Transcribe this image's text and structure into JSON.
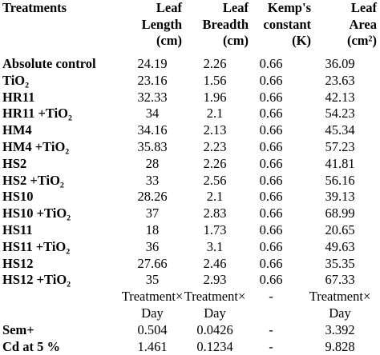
{
  "table": {
    "header": [
      [
        "Treatments"
      ],
      [
        "Leaf",
        "Length",
        "(cm)"
      ],
      [
        "Leaf",
        "Breadth",
        "(cm)"
      ],
      [
        "Kemp's",
        "constant",
        "(K)"
      ],
      [
        "Leaf",
        "Area",
        "(cm²)"
      ]
    ],
    "rows": [
      [
        "Absolute control",
        24.19,
        2.26,
        0.66,
        36.09
      ],
      [
        "TiO₂",
        23.16,
        1.56,
        0.66,
        23.63
      ],
      [
        "HR11",
        32.33,
        1.96,
        0.66,
        42.13
      ],
      [
        "HR11 +TiO₂",
        34,
        2.1,
        0.66,
        54.23
      ],
      [
        "HM4",
        34.16,
        2.13,
        0.66,
        45.34
      ],
      [
        "HM4 +TiO₂",
        35.83,
        2.23,
        0.66,
        57.23
      ],
      [
        "HS2",
        28,
        2.26,
        0.66,
        41.81
      ],
      [
        "HS2 +TiO₂",
        33,
        2.56,
        0.66,
        56.16
      ],
      [
        "HS10",
        28.26,
        2.1,
        0.66,
        39.13
      ],
      [
        "HS10 +TiO₂",
        37,
        2.83,
        0.66,
        68.99
      ],
      [
        "HS11",
        18,
        1.73,
        0.66,
        20.65
      ],
      [
        "HS11 +TiO₂",
        36,
        3.1,
        0.66,
        49.63
      ],
      [
        "HS12",
        27.66,
        2.46,
        0.66,
        35.35
      ],
      [
        "HS12 +TiO₂",
        35,
        2.93,
        0.66,
        67.33
      ]
    ],
    "interaction_row": [
      [
        "Treatment×",
        "Day"
      ],
      [
        "Treatment×",
        "Day"
      ],
      [
        "-"
      ],
      [
        "Treatment×",
        "Day"
      ]
    ],
    "stats_rows": [
      [
        "Sem+",
        0.504,
        0.0426,
        "-",
        3.392
      ],
      [
        "Cd at 5 %",
        1.461,
        0.1234,
        "-",
        9.828
      ]
    ]
  }
}
